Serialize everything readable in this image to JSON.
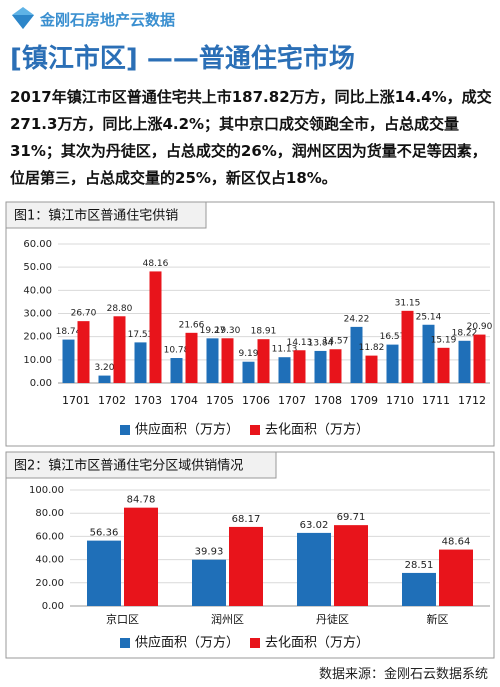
{
  "header": {
    "logo_text": "金刚石房地产云数据"
  },
  "title": "[镇江市区] ——普通住宅市场",
  "paragraph": [
    "2017年镇江市区普通住宅共上市187.82万方，同比上涨14.4%，成交",
    "271.3万方，同比上涨4.2%；其中京口成交领跑全市，占总成交量",
    "31%；其次为丹徒区，占总成交的26%，润州区因为货量不足等因素，",
    "位居第三，占总成交量的25%，新区仅占18%。"
  ],
  "chart_data": [
    {
      "type": "bar",
      "title": "图1：镇江市区普通住宅供销",
      "categories": [
        "1701",
        "1702",
        "1703",
        "1704",
        "1705",
        "1706",
        "1707",
        "1708",
        "1709",
        "1710",
        "1711",
        "1712"
      ],
      "series": [
        {
          "name": "供应面积（万方）",
          "color": "#1f6fb8",
          "values": [
            18.74,
            3.2,
            17.53,
            10.78,
            19.27,
            9.19,
            11.13,
            13.84,
            24.22,
            16.57,
            25.14,
            18.22
          ],
          "value_labels": [
            "18.74",
            "3.20",
            "17.53",
            "10.78",
            "19.27",
            "9.19",
            "11.13",
            "13.84",
            "24.22",
            "16.57",
            "25.14",
            "18.22"
          ]
        },
        {
          "name": "去化面积（万方）",
          "color": "#e8141b",
          "values": [
            26.7,
            28.8,
            48.16,
            21.66,
            19.3,
            18.91,
            14.13,
            14.57,
            11.82,
            31.15,
            15.19,
            20.9
          ],
          "value_labels": [
            "26.70",
            "28.80",
            "48.16",
            "21.66",
            "19.30",
            "18.91",
            "14.13",
            "14.57",
            "11.82",
            "31.15",
            "15.19",
            "20.90"
          ]
        }
      ],
      "ylim": [
        0,
        60
      ],
      "yticks": [
        {
          "value": 0,
          "label": "0.00"
        },
        {
          "value": 10,
          "label": "10.00"
        },
        {
          "value": 20,
          "label": "20.00"
        },
        {
          "value": 30,
          "label": "30.00"
        },
        {
          "value": 40,
          "label": "40.00"
        },
        {
          "value": 50,
          "label": "50.00"
        },
        {
          "value": 60,
          "label": "60.00"
        }
      ],
      "grid": true
    },
    {
      "type": "bar",
      "title": "图2：镇江市区普通住宅分区域供销情况",
      "categories": [
        "京口区",
        "润州区",
        "丹徒区",
        "新区"
      ],
      "series": [
        {
          "name": "供应面积（万方）",
          "color": "#1f6fb8",
          "values": [
            56.36,
            39.93,
            63.02,
            28.51
          ]
        },
        {
          "name": "去化面积（万方）",
          "color": "#e8141b",
          "values": [
            84.78,
            68.17,
            69.71,
            48.64
          ]
        }
      ],
      "ylim": [
        0,
        100
      ],
      "yticks": [
        {
          "value": 0,
          "label": "0.00"
        },
        {
          "value": 20,
          "label": "20.00"
        },
        {
          "value": 40,
          "label": "40.00"
        },
        {
          "value": 60,
          "label": "60.00"
        },
        {
          "value": 80,
          "label": "80.00"
        },
        {
          "value": 100,
          "label": "100.00"
        }
      ],
      "grid": true
    }
  ],
  "footer": "数据来源：金刚石云数据系统"
}
